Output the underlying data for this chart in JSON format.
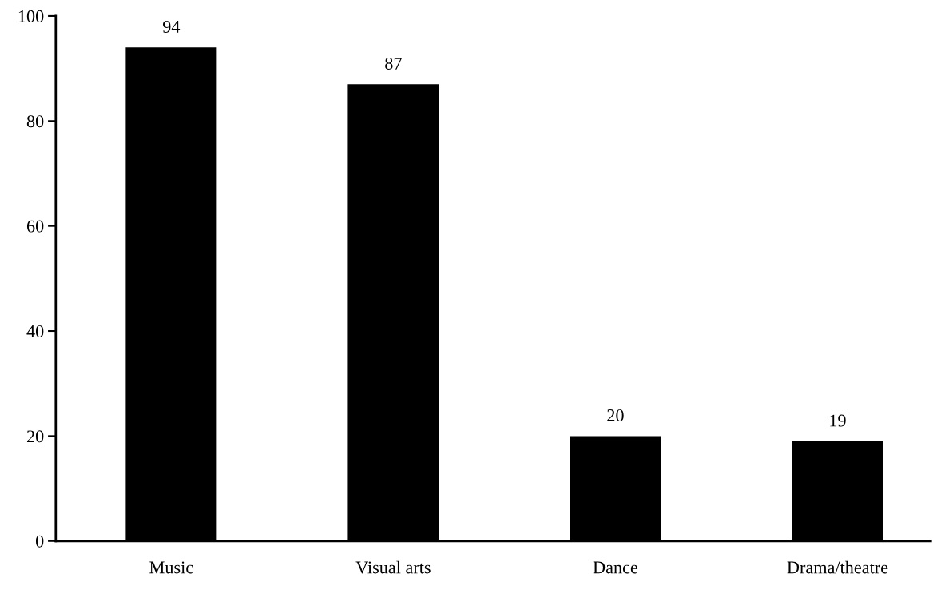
{
  "chart_data": {
    "type": "bar",
    "categories": [
      "Music",
      "Visual arts",
      "Dance",
      "Drama/theatre"
    ],
    "values": [
      94,
      87,
      20,
      19
    ],
    "color": "#000000",
    "ylim": [
      0,
      100
    ],
    "yticks": [
      0,
      20,
      40,
      60,
      80,
      100
    ],
    "data_labels": true,
    "grid": false,
    "legend": false
  }
}
